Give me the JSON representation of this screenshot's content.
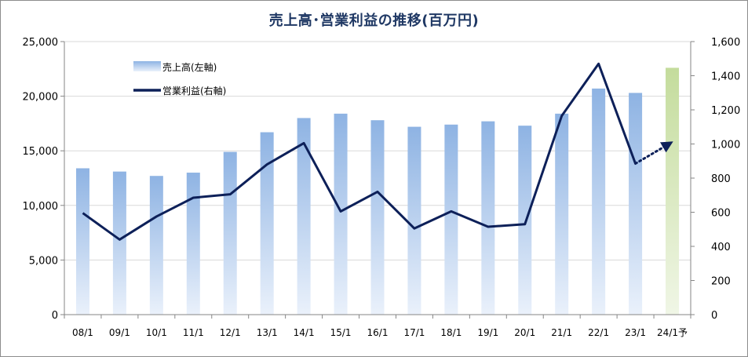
{
  "chart_data": {
    "type": "bar",
    "title": "売上高･営業利益の推移(百万円)",
    "categories": [
      "08/1",
      "09/1",
      "10/1",
      "11/1",
      "12/1",
      "13/1",
      "14/1",
      "15/1",
      "16/1",
      "17/1",
      "18/1",
      "19/1",
      "20/1",
      "21/1",
      "22/1",
      "23/1",
      "24/1予"
    ],
    "series": [
      {
        "name": "売上高(左軸)",
        "type": "bar",
        "axis": "left",
        "values": [
          13400,
          13100,
          12700,
          13000,
          14900,
          16700,
          18000,
          18400,
          17800,
          17200,
          17400,
          17700,
          17300,
          18400,
          20700,
          20300,
          22600
        ],
        "forecast_index": 16
      },
      {
        "name": "営業利益(右軸)",
        "type": "line",
        "axis": "right",
        "values": [
          595,
          440,
          575,
          685,
          705,
          880,
          1005,
          605,
          720,
          505,
          605,
          515,
          530,
          1165,
          1470,
          885,
          1010
        ],
        "forecast_index": 16
      }
    ],
    "y_left": {
      "min": 0,
      "max": 25000,
      "step": 5000,
      "tick_labels": [
        "0",
        "5,000",
        "10,000",
        "15,000",
        "20,000",
        "25,000"
      ]
    },
    "y_right": {
      "min": 0,
      "max": 1600,
      "step": 200,
      "tick_labels": [
        "0",
        "200",
        "400",
        "600",
        "800",
        "1,000",
        "1,200",
        "1,400",
        "1,600"
      ]
    },
    "grid": true,
    "legend_position": "top-left"
  },
  "colors": {
    "title": "#1f3864",
    "bar_top": "#8eb3e3",
    "bar_bottom": "#eaf1fb",
    "forecast_top": "#c4dc9c",
    "forecast_bottom": "#f0f6e6",
    "line": "#0d2059",
    "grid": "#d9d9d9"
  }
}
